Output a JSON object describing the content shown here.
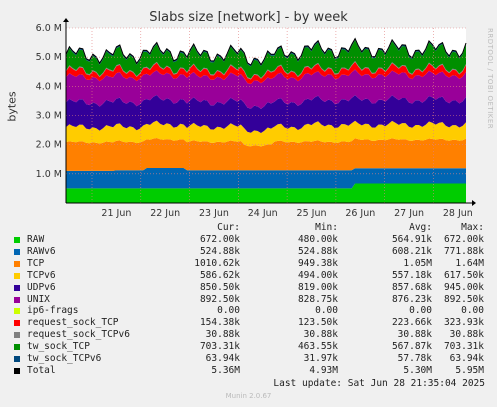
{
  "chart_data": {
    "type": "area",
    "title": "Slabs size [network] - by week",
    "ylabel": "bytes",
    "ylim": [
      0,
      6000000
    ],
    "yticks": [
      "",
      "1.0 M",
      "2.0 M",
      "3.0 M",
      "4.0 M",
      "5.0 M",
      "6.0 M"
    ],
    "xticks": [
      "21 Jun",
      "22 Jun",
      "23 Jun",
      "24 Jun",
      "25 Jun",
      "26 Jun",
      "27 Jun",
      "28 Jun"
    ],
    "grid": true,
    "stacked": true,
    "series": [
      {
        "name": "RAW",
        "color": "#00cc00",
        "cur": "672.00k",
        "min": "480.00k",
        "avg": "564.91k",
        "max": "672.00k"
      },
      {
        "name": "RAWv6",
        "color": "#0066b3",
        "cur": "524.88k",
        "min": "524.88k",
        "avg": "608.21k",
        "max": "771.88k"
      },
      {
        "name": "TCP",
        "color": "#ff8000",
        "cur": "1010.62k",
        "min": "949.38k",
        "avg": "1.05M",
        "max": "1.64M"
      },
      {
        "name": "TCPv6",
        "color": "#ffcc00",
        "cur": "586.62k",
        "min": "494.00k",
        "avg": "557.18k",
        "max": "617.50k"
      },
      {
        "name": "UDPv6",
        "color": "#330099",
        "cur": "850.50k",
        "min": "819.00k",
        "avg": "857.68k",
        "max": "945.00k"
      },
      {
        "name": "UNIX",
        "color": "#990099",
        "cur": "892.50k",
        "min": "828.75k",
        "avg": "876.23k",
        "max": "892.50k"
      },
      {
        "name": "ip6-frags",
        "color": "#ccff00",
        "cur": "0.00",
        "min": "0.00",
        "avg": "0.00",
        "max": "0.00"
      },
      {
        "name": "request_sock_TCP",
        "color": "#ff0000",
        "cur": "154.38k",
        "min": "123.50k",
        "avg": "223.66k",
        "max": "323.93k"
      },
      {
        "name": "request_sock_TCPv6",
        "color": "#808080",
        "cur": "30.88k",
        "min": "30.88k",
        "avg": "30.88k",
        "max": "30.88k"
      },
      {
        "name": "tw_sock_TCP",
        "color": "#008f00",
        "cur": "703.31k",
        "min": "463.55k",
        "avg": "567.87k",
        "max": "703.31k"
      },
      {
        "name": "tw_sock_TCPv6",
        "color": "#00487d",
        "cur": "63.94k",
        "min": "31.97k",
        "avg": "57.78k",
        "max": "63.94k"
      },
      {
        "name": "Total",
        "color": "#000000",
        "cur": "5.36M",
        "min": "4.93M",
        "avg": "5.30M",
        "max": "5.95M"
      }
    ]
  },
  "legend_headers": {
    "cur": "Cur:",
    "min": "Min:",
    "avg": "Avg:",
    "max": "Max:"
  },
  "last_update": "Last update: Sat Jun 28 21:35:04 2025",
  "watermark": "RRDTOOL / TOBI OETIKER",
  "footer": "Munin 2.0.67"
}
